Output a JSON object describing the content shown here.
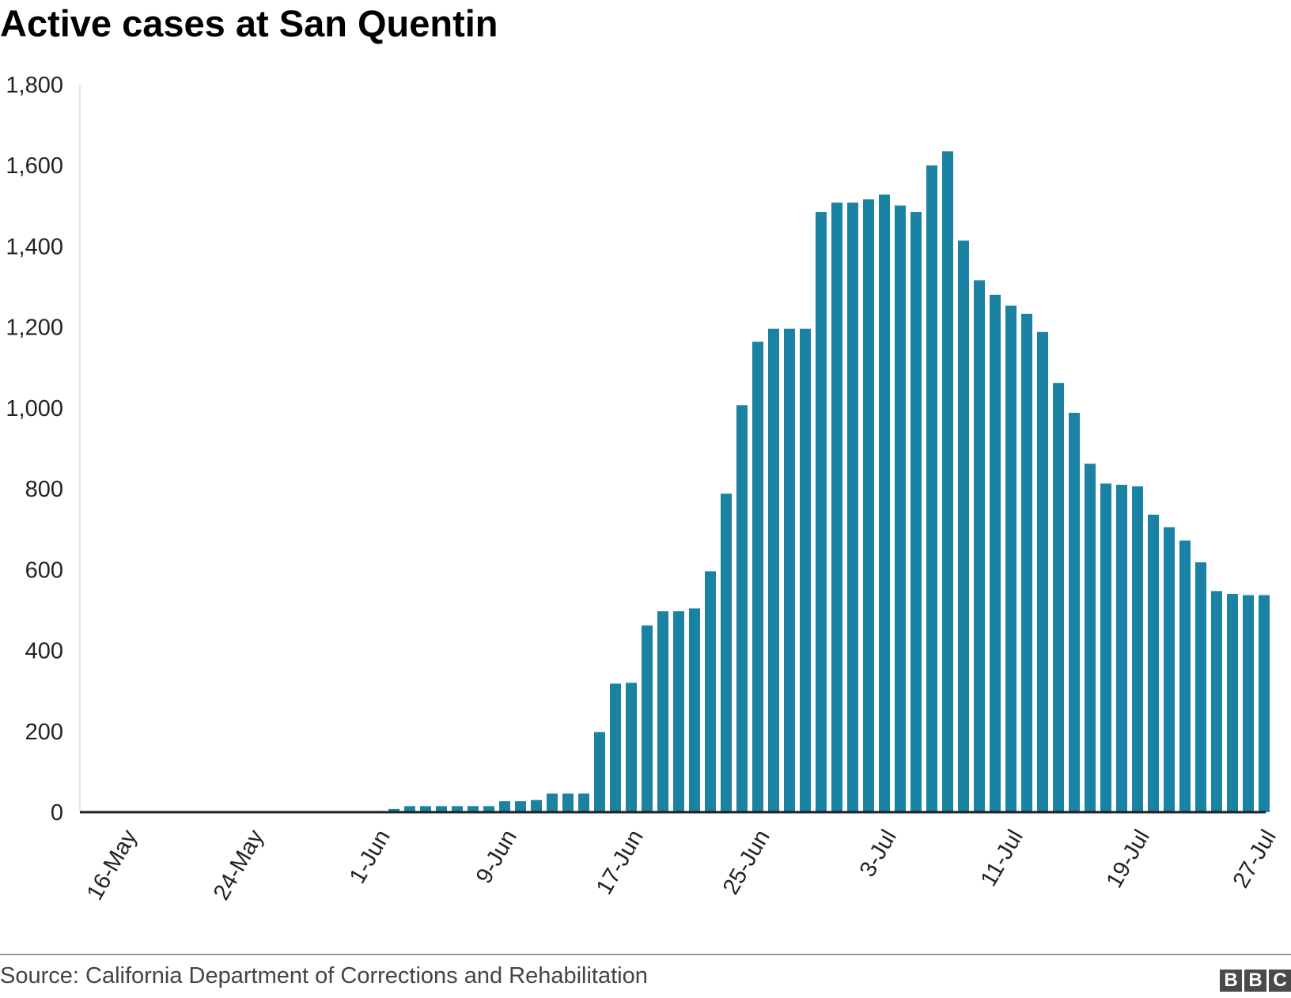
{
  "chart_data": {
    "type": "bar",
    "title": "Active cases at San Quentin",
    "xlabel": "",
    "ylabel": "",
    "ylim": [
      0,
      1800
    ],
    "yticks": [
      "0",
      "200",
      "400",
      "600",
      "800",
      "1,000",
      "1,200",
      "1,400",
      "1,600",
      "1,800"
    ],
    "x_tick_labels": [
      "16-May",
      "24-May",
      "1-Jun",
      "9-Jun",
      "17-Jun",
      "25-Jun",
      "3-Jul",
      "11-Jul",
      "19-Jul",
      "27-Jul"
    ],
    "grid": false,
    "bar_color": "#1a82a3",
    "categories": [
      "16-May",
      "17-May",
      "18-May",
      "19-May",
      "20-May",
      "21-May",
      "22-May",
      "23-May",
      "24-May",
      "25-May",
      "26-May",
      "27-May",
      "28-May",
      "29-May",
      "30-May",
      "31-May",
      "1-Jun",
      "2-Jun",
      "3-Jun",
      "4-Jun",
      "5-Jun",
      "6-Jun",
      "7-Jun",
      "8-Jun",
      "9-Jun",
      "10-Jun",
      "11-Jun",
      "12-Jun",
      "13-Jun",
      "14-Jun",
      "15-Jun",
      "16-Jun",
      "17-Jun",
      "18-Jun",
      "19-Jun",
      "20-Jun",
      "21-Jun",
      "22-Jun",
      "23-Jun",
      "24-Jun",
      "25-Jun",
      "26-Jun",
      "27-Jun",
      "28-Jun",
      "29-Jun",
      "30-Jun",
      "1-Jul",
      "2-Jul",
      "3-Jul",
      "4-Jul",
      "5-Jul",
      "6-Jul",
      "7-Jul",
      "8-Jul",
      "9-Jul",
      "10-Jul",
      "11-Jul",
      "12-Jul",
      "13-Jul",
      "14-Jul",
      "15-Jul",
      "16-Jul",
      "17-Jul",
      "18-Jul",
      "19-Jul",
      "20-Jul",
      "21-Jul",
      "22-Jul",
      "23-Jul",
      "24-Jul",
      "25-Jul",
      "26-Jul",
      "27-Jul"
    ],
    "values": [
      0,
      0,
      0,
      0,
      0,
      0,
      0,
      0,
      0,
      0,
      0,
      0,
      0,
      0,
      0,
      0,
      3,
      8,
      15,
      15,
      15,
      15,
      15,
      15,
      27,
      27,
      30,
      46,
      46,
      46,
      198,
      318,
      320,
      462,
      497,
      497,
      504,
      596,
      788,
      1007,
      1164,
      1196,
      1196,
      1196,
      1485,
      1508,
      1508,
      1516,
      1528,
      1501,
      1485,
      1600,
      1635,
      1414,
      1316,
      1280,
      1253,
      1233,
      1188,
      1062,
      988,
      862,
      813,
      810,
      806,
      736,
      705,
      672,
      618,
      547,
      540,
      537,
      537
    ]
  },
  "footer": {
    "source": "Source: California Department of Corrections and Rehabilitation",
    "logo_letters": [
      "B",
      "B",
      "C"
    ]
  }
}
